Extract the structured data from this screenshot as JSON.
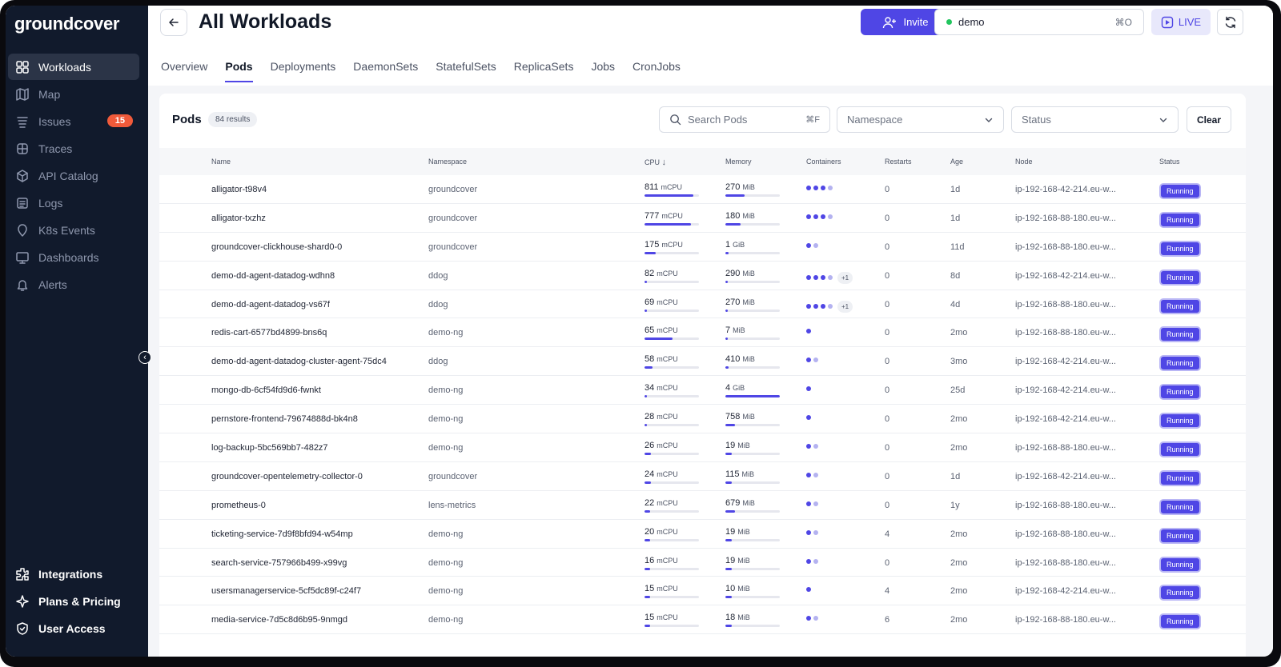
{
  "brand": "groundcover",
  "nav": [
    {
      "label": "Workloads",
      "icon": "workloads-icon",
      "active": true
    },
    {
      "label": "Map",
      "icon": "map-icon"
    },
    {
      "label": "Issues",
      "icon": "issues-icon",
      "badge": "15"
    },
    {
      "label": "Traces",
      "icon": "traces-icon"
    },
    {
      "label": "API Catalog",
      "icon": "api-catalog-icon"
    },
    {
      "label": "Logs",
      "icon": "logs-icon"
    },
    {
      "label": "K8s Events",
      "icon": "k8s-events-icon"
    },
    {
      "label": "Dashboards",
      "icon": "dashboards-icon"
    },
    {
      "label": "Alerts",
      "icon": "alerts-icon"
    }
  ],
  "nav_bottom": [
    {
      "label": "Integrations",
      "icon": "integrations-icon"
    },
    {
      "label": "Plans & Pricing",
      "icon": "plans-pricing-icon"
    },
    {
      "label": "User Access",
      "icon": "user-access-icon"
    }
  ],
  "header": {
    "title": "All Workloads",
    "invite_label": "Invite",
    "env_name": "demo",
    "env_shortcut": "⌘O",
    "live_label": "LIVE"
  },
  "tabs": [
    {
      "label": "Overview"
    },
    {
      "label": "Pods",
      "active": true
    },
    {
      "label": "Deployments"
    },
    {
      "label": "DaemonSets"
    },
    {
      "label": "StatefulSets"
    },
    {
      "label": "ReplicaSets"
    },
    {
      "label": "Jobs"
    },
    {
      "label": "CronJobs"
    }
  ],
  "card": {
    "title": "Pods",
    "results": "84 results",
    "search_placeholder": "Search Pods",
    "search_shortcut": "⌘F",
    "namespace_placeholder": "Namespace",
    "status_placeholder": "Status",
    "clear_label": "Clear"
  },
  "columns": {
    "name": "Name",
    "namespace": "Namespace",
    "cpu": "CPU",
    "memory": "Memory",
    "containers": "Containers",
    "restarts": "Restarts",
    "age": "Age",
    "node": "Node",
    "status": "Status"
  },
  "colors": {
    "accent": "#4f46e5",
    "sidebar": "#111a2c",
    "badge": "#f05a3a"
  },
  "pods": [
    {
      "name": "alligator-t98v4",
      "namespace": "groundcover",
      "cpu": "811",
      "cpu_unit": "mCPU",
      "cpu_frac": 0.9,
      "mem": "270",
      "mem_unit": "MiB",
      "mem_frac": 0.35,
      "containers": 4,
      "dark": 3,
      "extra": "",
      "restarts": "0",
      "age": "1d",
      "node": "ip-192-168-42-214.eu-w...",
      "status": "Running"
    },
    {
      "name": "alligator-txzhz",
      "namespace": "groundcover",
      "cpu": "777",
      "cpu_unit": "mCPU",
      "cpu_frac": 0.86,
      "mem": "180",
      "mem_unit": "MiB",
      "mem_frac": 0.28,
      "containers": 4,
      "dark": 3,
      "extra": "",
      "restarts": "0",
      "age": "1d",
      "node": "ip-192-168-88-180.eu-w...",
      "status": "Running"
    },
    {
      "name": "groundcover-clickhouse-shard0-0",
      "namespace": "groundcover",
      "cpu": "175",
      "cpu_unit": "mCPU",
      "cpu_frac": 0.2,
      "mem": "1",
      "mem_unit": "GiB",
      "mem_frac": 0.06,
      "containers": 2,
      "dark": 1,
      "extra": "",
      "restarts": "0",
      "age": "11d",
      "node": "ip-192-168-88-180.eu-w...",
      "status": "Running"
    },
    {
      "name": "demo-dd-agent-datadog-wdhn8",
      "namespace": "ddog",
      "cpu": "82",
      "cpu_unit": "mCPU",
      "cpu_frac": 0.05,
      "mem": "290",
      "mem_unit": "MiB",
      "mem_frac": 0.05,
      "containers": 4,
      "dark": 3,
      "extra": "+1",
      "restarts": "0",
      "age": "8d",
      "node": "ip-192-168-42-214.eu-w...",
      "status": "Running"
    },
    {
      "name": "demo-dd-agent-datadog-vs67f",
      "namespace": "ddog",
      "cpu": "69",
      "cpu_unit": "mCPU",
      "cpu_frac": 0.05,
      "mem": "270",
      "mem_unit": "MiB",
      "mem_frac": 0.05,
      "containers": 4,
      "dark": 3,
      "extra": "+1",
      "restarts": "0",
      "age": "4d",
      "node": "ip-192-168-88-180.eu-w...",
      "status": "Running"
    },
    {
      "name": "redis-cart-6577bd4899-bns6q",
      "namespace": "demo-ng",
      "cpu": "65",
      "cpu_unit": "mCPU",
      "cpu_frac": 0.52,
      "mem": "7",
      "mem_unit": "MiB",
      "mem_frac": 0.04,
      "containers": 1,
      "dark": 1,
      "extra": "",
      "restarts": "0",
      "age": "2mo",
      "node": "ip-192-168-88-180.eu-w...",
      "status": "Running"
    },
    {
      "name": "demo-dd-agent-datadog-cluster-agent-75dc4",
      "namespace": "ddog",
      "cpu": "58",
      "cpu_unit": "mCPU",
      "cpu_frac": 0.15,
      "mem": "410",
      "mem_unit": "MiB",
      "mem_frac": 0.06,
      "containers": 2,
      "dark": 1,
      "extra": "",
      "restarts": "0",
      "age": "3mo",
      "node": "ip-192-168-42-214.eu-w...",
      "status": "Running"
    },
    {
      "name": "mongo-db-6cf54fd9d6-fwnkt",
      "namespace": "demo-ng",
      "cpu": "34",
      "cpu_unit": "mCPU",
      "cpu_frac": 0.05,
      "mem": "4",
      "mem_unit": "GiB",
      "mem_frac": 1.0,
      "containers": 1,
      "dark": 1,
      "extra": "",
      "restarts": "0",
      "age": "25d",
      "node": "ip-192-168-42-214.eu-w...",
      "status": "Running"
    },
    {
      "name": "pernstore-frontend-79674888d-bk4n8",
      "namespace": "demo-ng",
      "cpu": "28",
      "cpu_unit": "mCPU",
      "cpu_frac": 0.05,
      "mem": "758",
      "mem_unit": "MiB",
      "mem_frac": 0.18,
      "containers": 1,
      "dark": 1,
      "extra": "",
      "restarts": "0",
      "age": "2mo",
      "node": "ip-192-168-42-214.eu-w...",
      "status": "Running"
    },
    {
      "name": "log-backup-5bc569bb7-482z7",
      "namespace": "demo-ng",
      "cpu": "26",
      "cpu_unit": "mCPU",
      "cpu_frac": 0.12,
      "mem": "19",
      "mem_unit": "MiB",
      "mem_frac": 0.12,
      "containers": 2,
      "dark": 1,
      "extra": "",
      "restarts": "0",
      "age": "2mo",
      "node": "ip-192-168-88-180.eu-w...",
      "status": "Running"
    },
    {
      "name": "groundcover-opentelemetry-collector-0",
      "namespace": "groundcover",
      "cpu": "24",
      "cpu_unit": "mCPU",
      "cpu_frac": 0.12,
      "mem": "115",
      "mem_unit": "MiB",
      "mem_frac": 0.12,
      "containers": 2,
      "dark": 1,
      "extra": "",
      "restarts": "0",
      "age": "1d",
      "node": "ip-192-168-42-214.eu-w...",
      "status": "Running"
    },
    {
      "name": "prometheus-0",
      "namespace": "lens-metrics",
      "cpu": "22",
      "cpu_unit": "mCPU",
      "cpu_frac": 0.1,
      "mem": "679",
      "mem_unit": "MiB",
      "mem_frac": 0.17,
      "containers": 2,
      "dark": 1,
      "extra": "",
      "restarts": "0",
      "age": "1y",
      "node": "ip-192-168-88-180.eu-w...",
      "status": "Running"
    },
    {
      "name": "ticketing-service-7d9f8bfd94-w54mp",
      "namespace": "demo-ng",
      "cpu": "20",
      "cpu_unit": "mCPU",
      "cpu_frac": 0.1,
      "mem": "19",
      "mem_unit": "MiB",
      "mem_frac": 0.12,
      "containers": 2,
      "dark": 1,
      "extra": "",
      "restarts": "4",
      "age": "2mo",
      "node": "ip-192-168-88-180.eu-w...",
      "status": "Running"
    },
    {
      "name": "search-service-757966b499-x99vg",
      "namespace": "demo-ng",
      "cpu": "16",
      "cpu_unit": "mCPU",
      "cpu_frac": 0.1,
      "mem": "19",
      "mem_unit": "MiB",
      "mem_frac": 0.12,
      "containers": 2,
      "dark": 1,
      "extra": "",
      "restarts": "0",
      "age": "2mo",
      "node": "ip-192-168-88-180.eu-w...",
      "status": "Running"
    },
    {
      "name": "usersmanagerservice-5cf5dc89f-c24f7",
      "namespace": "demo-ng",
      "cpu": "15",
      "cpu_unit": "mCPU",
      "cpu_frac": 0.1,
      "mem": "10",
      "mem_unit": "MiB",
      "mem_frac": 0.12,
      "containers": 1,
      "dark": 1,
      "extra": "",
      "restarts": "4",
      "age": "2mo",
      "node": "ip-192-168-42-214.eu-w...",
      "status": "Running"
    },
    {
      "name": "media-service-7d5c8d6b95-9nmgd",
      "namespace": "demo-ng",
      "cpu": "15",
      "cpu_unit": "mCPU",
      "cpu_frac": 0.1,
      "mem": "18",
      "mem_unit": "MiB",
      "mem_frac": 0.12,
      "containers": 2,
      "dark": 1,
      "extra": "",
      "restarts": "6",
      "age": "2mo",
      "node": "ip-192-168-88-180.eu-w...",
      "status": "Running"
    }
  ]
}
